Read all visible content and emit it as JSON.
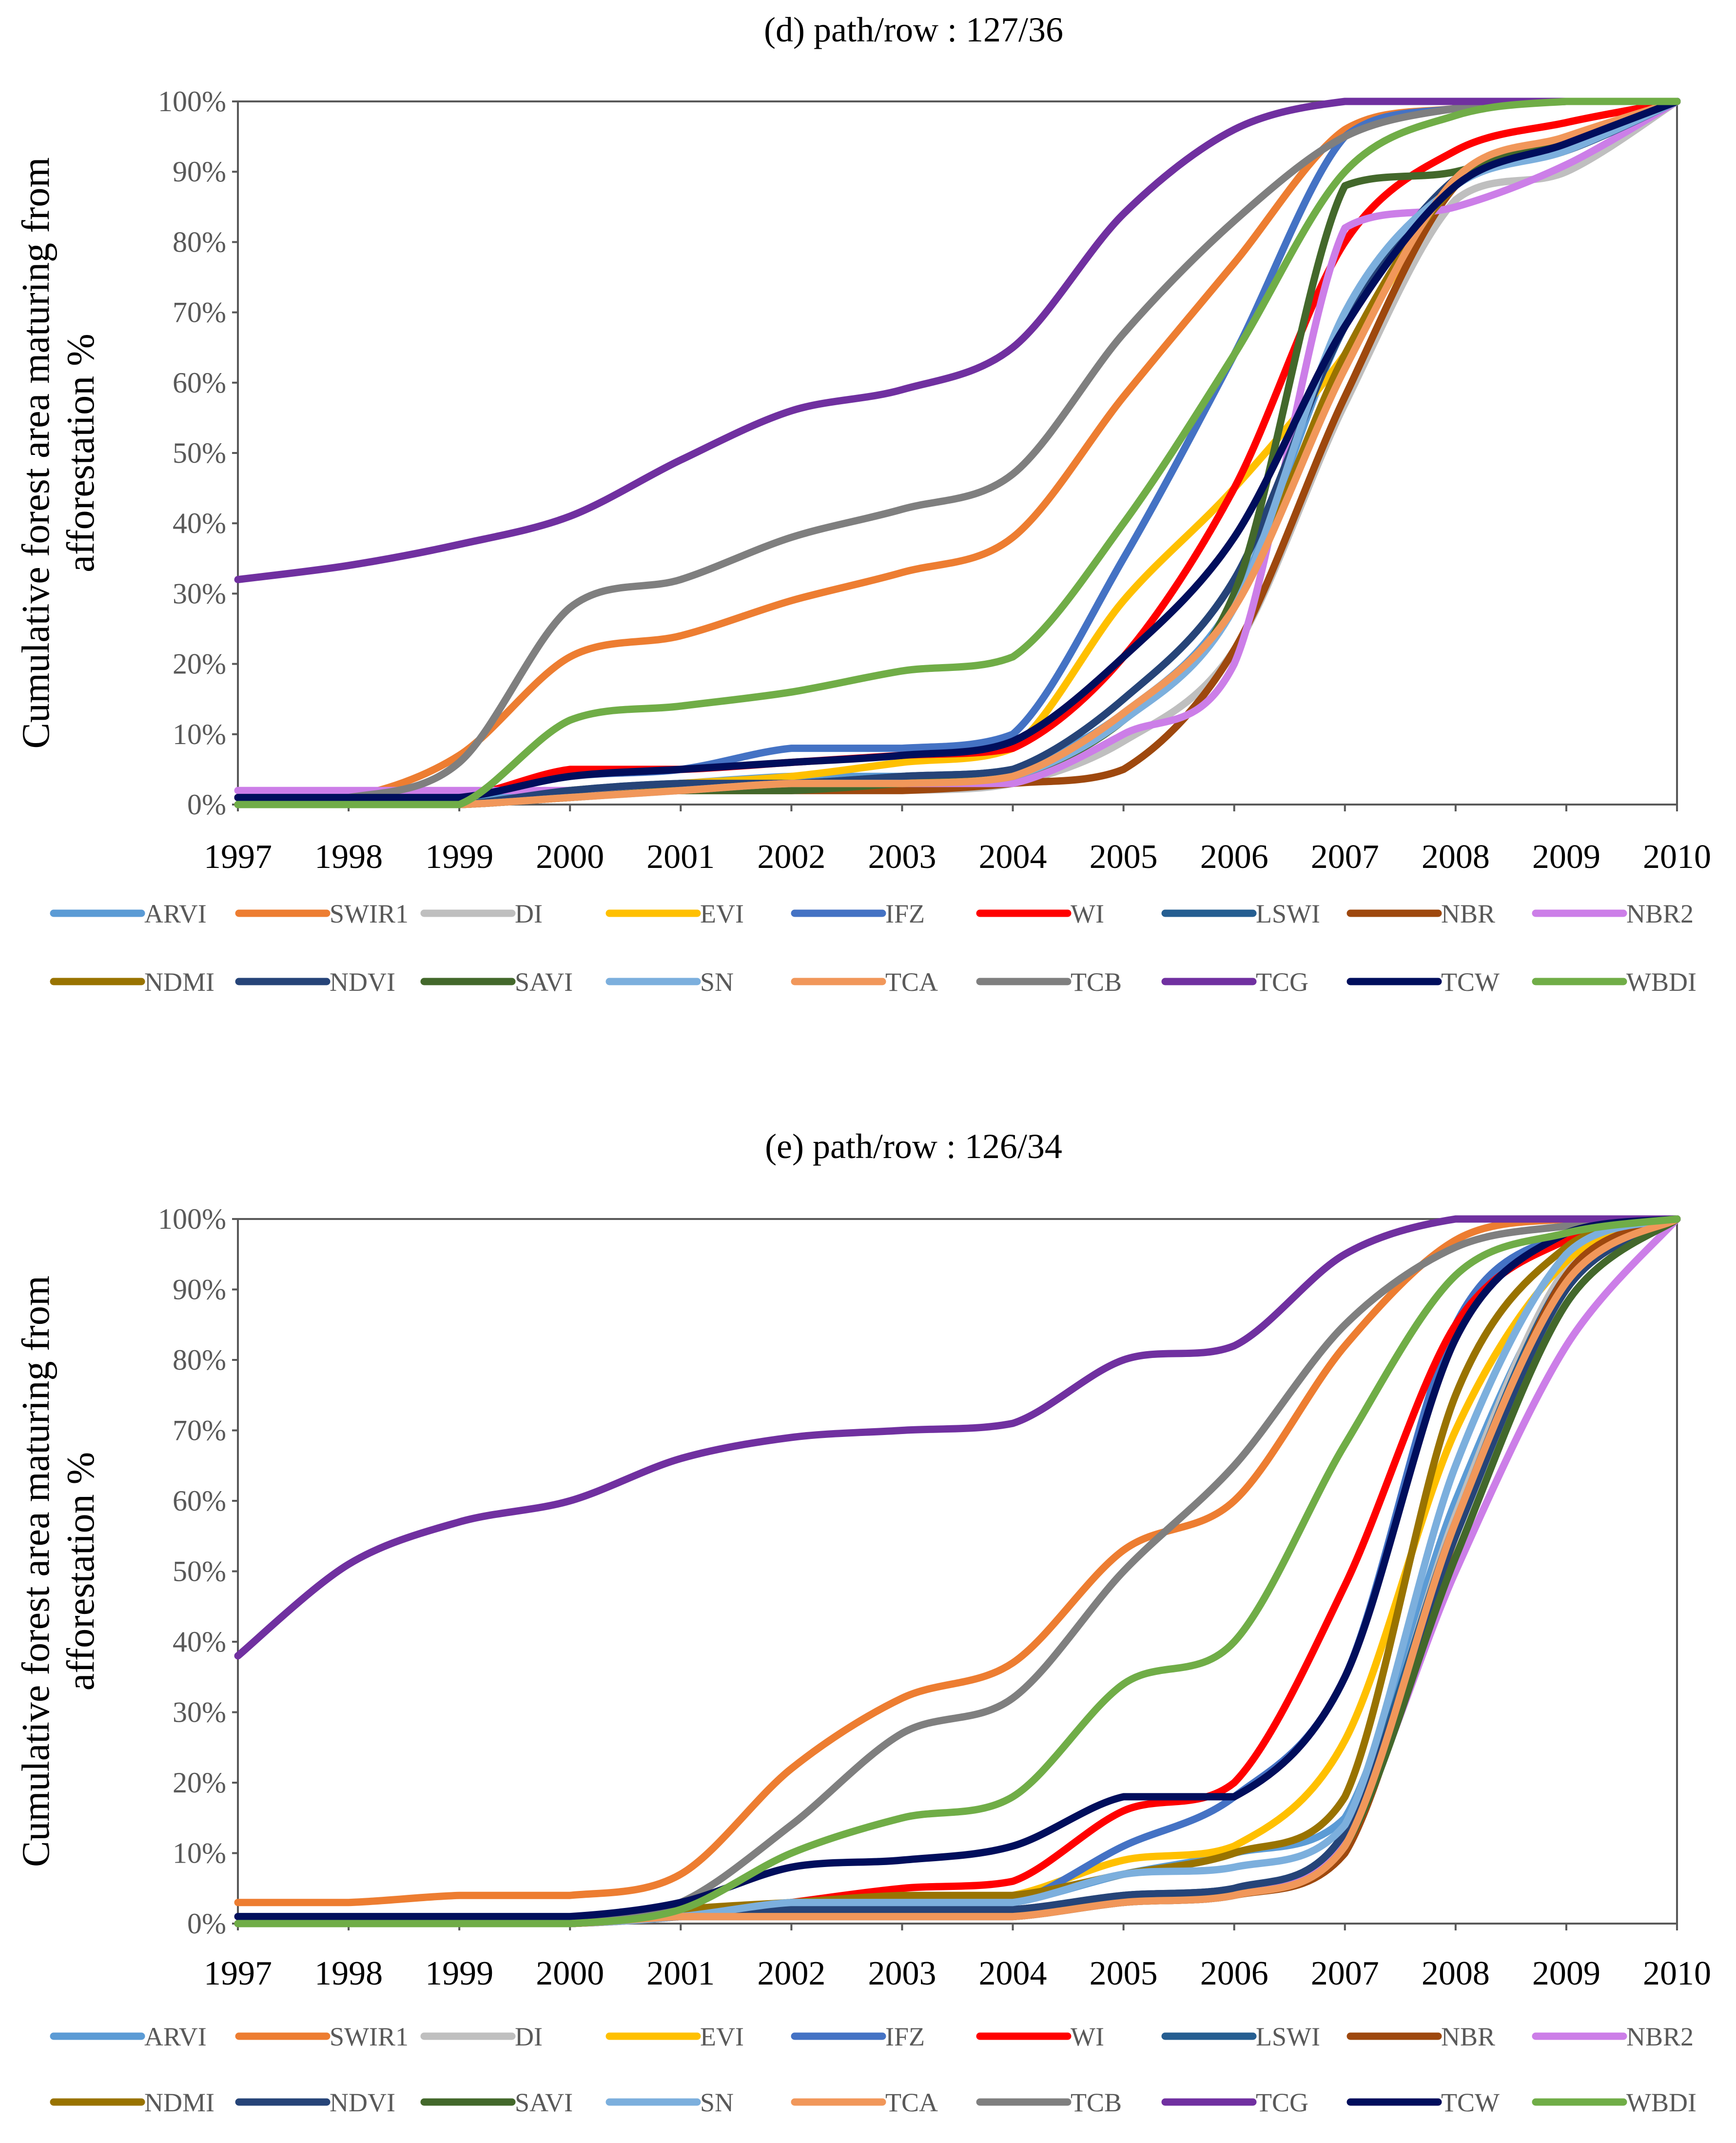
{
  "chart_data": [
    {
      "type": "line",
      "title": "(d) path/row : 127/36",
      "ylabel": "Cumulative forest area maturing from afforestation %",
      "xlabel": "",
      "x": [
        1997,
        1998,
        1999,
        2000,
        2001,
        2002,
        2003,
        2004,
        2005,
        2006,
        2007,
        2008,
        2009,
        2010
      ],
      "xlim": [
        1997,
        2010
      ],
      "ylim": [
        0,
        100
      ],
      "yticks": [
        "0%",
        "10%",
        "20%",
        "30%",
        "40%",
        "50%",
        "60%",
        "70%",
        "80%",
        "90%",
        "100%"
      ],
      "legend": "bottom",
      "series": [
        {
          "name": "ARVI",
          "color": "#5B9BD5",
          "values": [
            1,
            1,
            1,
            2,
            3,
            4,
            4,
            5,
            13,
            29,
            68,
            88,
            93,
            100
          ]
        },
        {
          "name": "SWIR1",
          "color": "#ED7D31",
          "values": [
            1,
            1,
            7,
            21,
            24,
            29,
            33,
            38,
            58,
            77,
            96,
            99,
            100,
            100
          ]
        },
        {
          "name": "DI",
          "color": "#BFBFBF",
          "values": [
            0,
            0,
            0,
            1,
            2,
            2,
            2,
            3,
            9,
            22,
            57,
            86,
            90,
            100
          ]
        },
        {
          "name": "EVI",
          "color": "#FFC000",
          "values": [
            0,
            0,
            0,
            2,
            3,
            4,
            6,
            8,
            29,
            45,
            64,
            88,
            93,
            100
          ]
        },
        {
          "name": "IFZ",
          "color": "#4472C4",
          "values": [
            1,
            1,
            1,
            4,
            5,
            8,
            8,
            10,
            35,
            64,
            95,
            99,
            100,
            100
          ]
        },
        {
          "name": "WI",
          "color": "#FF0000",
          "values": [
            1,
            1,
            1,
            5,
            5,
            6,
            7,
            8,
            21,
            45,
            80,
            93,
            97,
            100
          ]
        },
        {
          "name": "LSWI",
          "color": "#255E91",
          "values": [
            0,
            0,
            0,
            2,
            3,
            3,
            4,
            5,
            15,
            32,
            68,
            89,
            93,
            100
          ]
        },
        {
          "name": "NBR",
          "color": "#9E480E",
          "values": [
            0,
            0,
            0,
            1,
            2,
            2,
            2,
            3,
            5,
            22,
            58,
            88,
            93,
            100
          ]
        },
        {
          "name": "NBR2",
          "color": "#CC7EE8",
          "values": [
            2,
            2,
            2,
            2,
            2,
            3,
            3,
            3,
            10,
            20,
            82,
            85,
            91,
            100
          ]
        },
        {
          "name": "NDMI",
          "color": "#997300",
          "values": [
            0,
            0,
            0,
            1,
            2,
            2,
            3,
            4,
            12,
            28,
            64,
            88,
            93,
            100
          ]
        },
        {
          "name": "NDVI",
          "color": "#264478",
          "values": [
            0,
            0,
            0,
            2,
            3,
            3,
            4,
            5,
            15,
            32,
            68,
            89,
            93,
            100
          ]
        },
        {
          "name": "SAVI",
          "color": "#43682B",
          "values": [
            0,
            0,
            0,
            1,
            2,
            2,
            3,
            4,
            12,
            30,
            88,
            90,
            95,
            100
          ]
        },
        {
          "name": "SN",
          "color": "#7CAFDD",
          "values": [
            0,
            0,
            0,
            1,
            2,
            3,
            3,
            4,
            12,
            28,
            70,
            88,
            93,
            100
          ]
        },
        {
          "name": "TCA",
          "color": "#F1975A",
          "values": [
            0,
            0,
            0,
            1,
            2,
            3,
            3,
            4,
            13,
            28,
            62,
            89,
            95,
            100
          ]
        },
        {
          "name": "TCB",
          "color": "#7F7F7F",
          "values": [
            1,
            1,
            6,
            28,
            32,
            38,
            42,
            47,
            67,
            83,
            95,
            99,
            100,
            100
          ]
        },
        {
          "name": "TCG",
          "color": "#7030A0",
          "values": [
            32,
            34,
            37,
            41,
            49,
            56,
            59,
            65,
            84,
            96,
            100,
            100,
            100,
            100
          ]
        },
        {
          "name": "TCW",
          "color": "#000E5C",
          "values": [
            1,
            1,
            1,
            4,
            5,
            6,
            7,
            9,
            21,
            38,
            68,
            88,
            94,
            100
          ]
        },
        {
          "name": "WBDI",
          "color": "#70AD47",
          "values": [
            0,
            0,
            0,
            12,
            14,
            16,
            19,
            21,
            40,
            64,
            90,
            98,
            100,
            100
          ]
        }
      ]
    },
    {
      "type": "line",
      "title": "(e) path/row : 126/34",
      "ylabel": "Cumulative forest area maturing from afforestation %",
      "xlabel": "",
      "x": [
        1997,
        1998,
        1999,
        2000,
        2001,
        2002,
        2003,
        2004,
        2005,
        2006,
        2007,
        2008,
        2009,
        2010
      ],
      "xlim": [
        1997,
        2010
      ],
      "ylim": [
        0,
        100
      ],
      "yticks": [
        "0%",
        "10%",
        "20%",
        "30%",
        "40%",
        "50%",
        "60%",
        "70%",
        "80%",
        "90%",
        "100%"
      ],
      "legend": "bottom",
      "series": [
        {
          "name": "ARVI",
          "color": "#5B9BD5",
          "values": [
            0,
            0,
            0,
            0,
            1,
            2,
            2,
            3,
            7,
            10,
            15,
            60,
            92,
            100
          ]
        },
        {
          "name": "SWIR1",
          "color": "#ED7D31",
          "values": [
            3,
            3,
            4,
            4,
            7,
            22,
            32,
            37,
            53,
            60,
            82,
            97,
            100,
            100
          ]
        },
        {
          "name": "DI",
          "color": "#BFBFBF",
          "values": [
            0,
            0,
            0,
            0,
            1,
            2,
            2,
            2,
            4,
            5,
            12,
            58,
            93,
            100
          ]
        },
        {
          "name": "EVI",
          "color": "#FFC000",
          "values": [
            0,
            0,
            0,
            0,
            1,
            3,
            3,
            4,
            9,
            11,
            26,
            70,
            94,
            100
          ]
        },
        {
          "name": "IFZ",
          "color": "#4472C4",
          "values": [
            0,
            0,
            0,
            0,
            1,
            2,
            3,
            3,
            11,
            18,
            35,
            85,
            98,
            100
          ]
        },
        {
          "name": "WI",
          "color": "#FF0000",
          "values": [
            0,
            0,
            0,
            0,
            1,
            3,
            5,
            6,
            16,
            20,
            48,
            85,
            97,
            100
          ]
        },
        {
          "name": "LSWI",
          "color": "#255E91",
          "values": [
            0,
            0,
            0,
            0,
            1,
            2,
            2,
            2,
            4,
            5,
            13,
            57,
            92,
            100
          ]
        },
        {
          "name": "NBR",
          "color": "#9E480E",
          "values": [
            0,
            0,
            0,
            0,
            1,
            1,
            1,
            1,
            3,
            4,
            10,
            55,
            92,
            100
          ]
        },
        {
          "name": "NBR2",
          "color": "#CC7EE8",
          "values": [
            0,
            0,
            0,
            0,
            1,
            1,
            1,
            1,
            3,
            4,
            12,
            50,
            82,
            100
          ]
        },
        {
          "name": "NDMI",
          "color": "#997300",
          "values": [
            0,
            0,
            0,
            0,
            2,
            3,
            4,
            4,
            7,
            10,
            18,
            75,
            96,
            100
          ]
        },
        {
          "name": "NDVI",
          "color": "#264478",
          "values": [
            0,
            0,
            0,
            0,
            1,
            2,
            2,
            2,
            4,
            5,
            13,
            55,
            90,
            100
          ]
        },
        {
          "name": "SAVI",
          "color": "#43682B",
          "values": [
            0,
            0,
            0,
            0,
            1,
            1,
            1,
            1,
            3,
            4,
            11,
            52,
            88,
            100
          ]
        },
        {
          "name": "SN",
          "color": "#7CAFDD",
          "values": [
            0,
            0,
            0,
            0,
            1,
            3,
            3,
            3,
            7,
            8,
            14,
            65,
            95,
            100
          ]
        },
        {
          "name": "TCA",
          "color": "#F1975A",
          "values": [
            0,
            0,
            0,
            0,
            1,
            1,
            1,
            1,
            3,
            4,
            11,
            57,
            91,
            100
          ]
        },
        {
          "name": "TCB",
          "color": "#7F7F7F",
          "values": [
            0,
            0,
            0,
            0,
            3,
            14,
            27,
            32,
            50,
            65,
            85,
            96,
            99,
            100
          ]
        },
        {
          "name": "TCG",
          "color": "#7030A0",
          "values": [
            38,
            51,
            57,
            60,
            66,
            69,
            70,
            71,
            80,
            82,
            95,
            100,
            100,
            100
          ]
        },
        {
          "name": "TCW",
          "color": "#000E5C",
          "values": [
            1,
            1,
            1,
            1,
            3,
            8,
            9,
            11,
            18,
            18,
            35,
            83,
            98,
            100
          ]
        },
        {
          "name": "WBDI",
          "color": "#70AD47",
          "values": [
            0,
            0,
            0,
            0,
            2,
            10,
            15,
            18,
            34,
            40,
            68,
            92,
            98,
            100
          ]
        }
      ]
    }
  ]
}
